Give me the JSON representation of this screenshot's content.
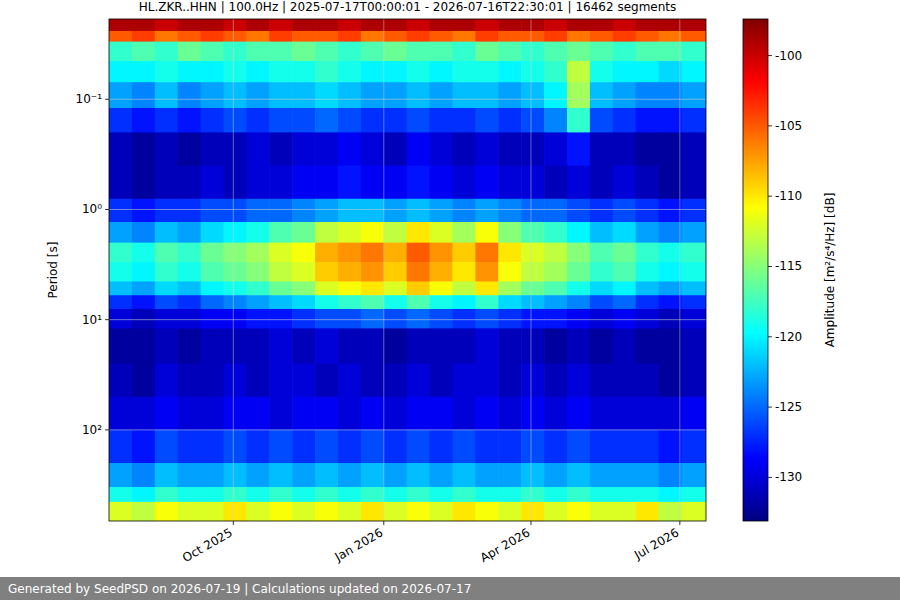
{
  "chart_data": {
    "type": "heatmap",
    "title": "HL.ZKR..HHN | 100.0Hz | 2025-07-17T00:00:01 - 2026-07-16T22:30:01 | 16462 segments",
    "ylabel": "Period [s]",
    "footer": "Generated by SeedPSD on 2026-07-19 | Calculations updated on 2026-07-17",
    "log": "y",
    "grid": true,
    "xlim": [
      "2025-07-17",
      "2026-07-17"
    ],
    "ylim": [
      671,
      0.0187
    ],
    "xticks": [
      {
        "value": "2025-10-01",
        "label": "Oct 2025"
      },
      {
        "value": "2026-01-01",
        "label": "Jan 2026"
      },
      {
        "value": "2026-04-01",
        "label": "Apr 2026"
      },
      {
        "value": "2026-07-01",
        "label": "Jul 2026"
      }
    ],
    "yticks": [
      {
        "value": 0.1,
        "label": "10⁻¹"
      },
      {
        "value": 1,
        "label": "10⁰"
      },
      {
        "value": 10,
        "label": "10¹"
      },
      {
        "value": 100,
        "label": "10²"
      }
    ],
    "x": [
      "2025-07-17",
      "2025-07-31",
      "2025-08-14",
      "2025-08-28",
      "2025-09-11",
      "2025-09-25",
      "2025-10-09",
      "2025-10-23",
      "2025-11-06",
      "2025-11-20",
      "2025-12-04",
      "2025-12-18",
      "2026-01-01",
      "2026-01-15",
      "2026-01-29",
      "2026-02-12",
      "2026-02-26",
      "2026-03-12",
      "2026-03-26",
      "2026-04-09",
      "2026-04-23",
      "2026-05-07",
      "2026-05-21",
      "2026-06-04",
      "2026-06-18",
      "2026-07-02",
      "2026-07-17"
    ],
    "y": [
      0.0187,
      0.024,
      0.03,
      0.045,
      0.07,
      0.12,
      0.2,
      0.4,
      0.8,
      1.3,
      2,
      3,
      4.5,
      6,
      8,
      12,
      25,
      50,
      100,
      200,
      330,
      450,
      671
    ],
    "cells": [
      [
        -99,
        -99,
        -100,
        -99,
        -99,
        -100,
        -99,
        -100,
        -99,
        -99,
        -100,
        -99,
        -99,
        -100,
        -99,
        -99,
        -100,
        -99,
        -99,
        -100,
        -99,
        -99,
        -100,
        -99,
        -99,
        -99
      ],
      [
        -105,
        -104,
        -106,
        -105,
        -104,
        -105,
        -106,
        -104,
        -105,
        -105,
        -104,
        -106,
        -105,
        -104,
        -105,
        -106,
        -104,
        -105,
        -105,
        -104,
        -106,
        -105,
        -104,
        -105,
        -106,
        -105
      ],
      [
        -118,
        -117,
        -118,
        -116,
        -117,
        -118,
        -117,
        -117,
        -116,
        -117,
        -118,
        -117,
        -116,
        -117,
        -117,
        -118,
        -116,
        -117,
        -118,
        -117,
        -116,
        -117,
        -118,
        -117,
        -117,
        -118
      ],
      [
        -120,
        -120,
        -119,
        -120,
        -120,
        -119,
        -120,
        -119,
        -119,
        -118,
        -119,
        -120,
        -120,
        -119,
        -120,
        -119,
        -119,
        -120,
        -119,
        -118,
        -113,
        -119,
        -120,
        -120,
        -121,
        -120
      ],
      [
        -123,
        -124,
        -122,
        -124,
        -123,
        -122,
        -123,
        -122,
        -122,
        -121,
        -122,
        -123,
        -123,
        -122,
        -123,
        -122,
        -122,
        -123,
        -122,
        -120,
        -114,
        -122,
        -123,
        -124,
        -124,
        -123
      ],
      [
        -127,
        -128,
        -127,
        -128,
        -127,
        -126,
        -127,
        -126,
        -126,
        -125,
        -126,
        -127,
        -127,
        -126,
        -127,
        -127,
        -126,
        -127,
        -126,
        -124,
        -118,
        -126,
        -127,
        -128,
        -128,
        -127
      ],
      [
        -131,
        -132,
        -131,
        -132,
        -131,
        -131,
        -130,
        -131,
        -130,
        -130,
        -129,
        -130,
        -131,
        -129,
        -130,
        -131,
        -130,
        -131,
        -131,
        -130,
        -128,
        -131,
        -131,
        -132,
        -132,
        -131
      ],
      [
        -131,
        -132,
        -131,
        -131,
        -130,
        -131,
        -130,
        -130,
        -129,
        -129,
        -128,
        -129,
        -129,
        -128,
        -129,
        -130,
        -129,
        -130,
        -130,
        -131,
        -130,
        -131,
        -130,
        -131,
        -132,
        -131
      ],
      [
        -127,
        -128,
        -127,
        -127,
        -126,
        -126,
        -125,
        -125,
        -124,
        -123,
        -122,
        -122,
        -123,
        -122,
        -123,
        -124,
        -123,
        -124,
        -125,
        -125,
        -126,
        -127,
        -126,
        -127,
        -128,
        -127
      ],
      [
        -123,
        -124,
        -122,
        -123,
        -121,
        -120,
        -119,
        -117,
        -116,
        -113,
        -112,
        -111,
        -113,
        -110,
        -112,
        -114,
        -111,
        -115,
        -117,
        -118,
        -120,
        -122,
        -121,
        -123,
        -124,
        -123
      ],
      [
        -118,
        -119,
        -117,
        -118,
        -116,
        -115,
        -114,
        -112,
        -111,
        -108,
        -107,
        -106,
        -108,
        -105,
        -107,
        -109,
        -106,
        -110,
        -112,
        -113,
        -115,
        -117,
        -116,
        -118,
        -119,
        -118
      ],
      [
        -119,
        -120,
        -118,
        -119,
        -117,
        -116,
        -115,
        -113,
        -112,
        -109,
        -108,
        -107,
        -109,
        -106,
        -108,
        -110,
        -107,
        -111,
        -113,
        -114,
        -116,
        -118,
        -117,
        -119,
        -120,
        -119
      ],
      [
        -122,
        -123,
        -121,
        -122,
        -120,
        -119,
        -118,
        -116,
        -115,
        -112,
        -111,
        -110,
        -112,
        -109,
        -111,
        -113,
        -110,
        -114,
        -116,
        -117,
        -119,
        -121,
        -120,
        -122,
        -123,
        -122
      ],
      [
        -127,
        -128,
        -126,
        -127,
        -125,
        -124,
        -123,
        -122,
        -121,
        -119,
        -118,
        -117,
        -119,
        -117,
        -119,
        -120,
        -118,
        -121,
        -122,
        -123,
        -124,
        -126,
        -125,
        -127,
        -128,
        -127
      ],
      [
        -130,
        -131,
        -130,
        -130,
        -129,
        -129,
        -128,
        -128,
        -127,
        -126,
        -126,
        -125,
        -126,
        -125,
        -126,
        -127,
        -126,
        -127,
        -128,
        -128,
        -129,
        -130,
        -129,
        -130,
        -131,
        -130
      ],
      [
        -132,
        -132,
        -131,
        -132,
        -131,
        -131,
        -131,
        -130,
        -131,
        -130,
        -131,
        -131,
        -132,
        -131,
        -131,
        -131,
        -130,
        -131,
        -131,
        -132,
        -131,
        -132,
        -131,
        -132,
        -132,
        -131
      ],
      [
        -131,
        -132,
        -130,
        -131,
        -131,
        -130,
        -131,
        -130,
        -130,
        -131,
        -130,
        -131,
        -131,
        -130,
        -131,
        -130,
        -130,
        -131,
        -130,
        -131,
        -130,
        -131,
        -131,
        -131,
        -132,
        -131
      ],
      [
        -130,
        -130,
        -129,
        -130,
        -130,
        -129,
        -129,
        -130,
        -129,
        -129,
        -130,
        -129,
        -130,
        -129,
        -129,
        -130,
        -129,
        -130,
        -129,
        -130,
        -129,
        -130,
        -130,
        -130,
        -130,
        -129
      ],
      [
        -127,
        -128,
        -126,
        -127,
        -127,
        -126,
        -127,
        -126,
        -127,
        -126,
        -127,
        -126,
        -127,
        -126,
        -127,
        -126,
        -127,
        -127,
        -126,
        -127,
        -126,
        -127,
        -127,
        -127,
        -128,
        -127
      ],
      [
        -123,
        -124,
        -122,
        -123,
        -123,
        -122,
        -123,
        -122,
        -123,
        -122,
        -123,
        -122,
        -123,
        -122,
        -123,
        -122,
        -123,
        -123,
        -122,
        -123,
        -122,
        -123,
        -123,
        -123,
        -124,
        -123
      ],
      [
        -119,
        -120,
        -118,
        -119,
        -119,
        -118,
        -119,
        -118,
        -119,
        -118,
        -119,
        -118,
        -119,
        -118,
        -119,
        -118,
        -119,
        -119,
        -118,
        -119,
        -118,
        -119,
        -119,
        -119,
        -120,
        -119
      ],
      [
        -112,
        -113,
        -111,
        -112,
        -112,
        -110,
        -112,
        -111,
        -112,
        -111,
        -112,
        -110,
        -112,
        -111,
        -112,
        -110,
        -111,
        -112,
        -110,
        -112,
        -111,
        -112,
        -112,
        -110,
        -113,
        -112
      ]
    ],
    "colorbar": {
      "label": "Amplitude [m²/s⁴/Hz] [dB]",
      "range": [
        -133.1,
        -97.4
      ],
      "ticks": [
        -130,
        -125,
        -120,
        -115,
        -110,
        -105,
        -100
      ]
    }
  }
}
